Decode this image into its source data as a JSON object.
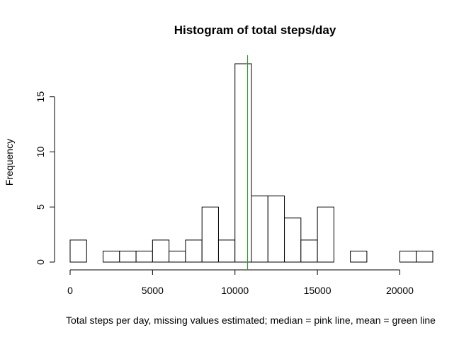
{
  "chart_data": {
    "type": "bar",
    "title": "Histogram of total steps/day",
    "xlabel": "Total steps per day, missing values estimated; median = pink line, mean = green line",
    "ylabel": "Frequency",
    "bin_width": 1000,
    "bins_start": [
      0,
      1000,
      2000,
      3000,
      4000,
      5000,
      6000,
      7000,
      8000,
      9000,
      10000,
      11000,
      12000,
      13000,
      14000,
      15000,
      16000,
      17000,
      18000,
      19000,
      20000,
      21000
    ],
    "values": [
      2,
      0,
      1,
      1,
      1,
      2,
      1,
      2,
      5,
      2,
      18,
      6,
      6,
      4,
      2,
      5,
      0,
      1,
      0,
      0,
      1,
      1
    ],
    "xlim": [
      0,
      22000
    ],
    "ylim": [
      0,
      18
    ],
    "x_ticks": [
      0,
      5000,
      10000,
      15000,
      20000
    ],
    "x_tick_labels": [
      "0",
      "5000",
      "10000",
      "15000",
      "20000"
    ],
    "y_ticks": [
      0,
      5,
      10,
      15
    ],
    "y_tick_labels": [
      "0",
      "5",
      "10",
      "15"
    ],
    "median": 10766,
    "mean": 10766,
    "median_color": "#ff69b4",
    "mean_color": "#1fa01f",
    "grid": false
  }
}
